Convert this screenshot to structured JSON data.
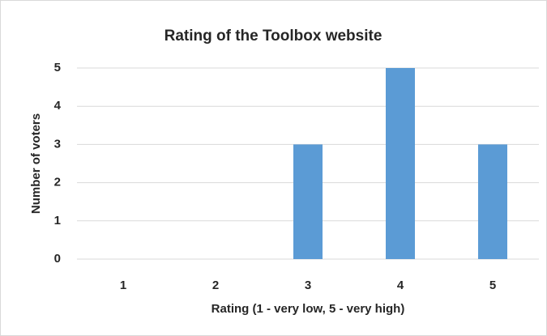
{
  "chart_data": {
    "type": "bar",
    "title": "Rating of the Toolbox website",
    "x_label": "Rating (1 - very low, 5 - very high)",
    "y_label": "Number of voters",
    "categories": [
      "1",
      "2",
      "3",
      "4",
      "5"
    ],
    "values": [
      0,
      0,
      3,
      5,
      3
    ],
    "color": "#5b9bd5",
    "ylim": [
      0,
      5
    ],
    "yticks": [
      0,
      1,
      2,
      3,
      4,
      5
    ],
    "grid": true
  }
}
